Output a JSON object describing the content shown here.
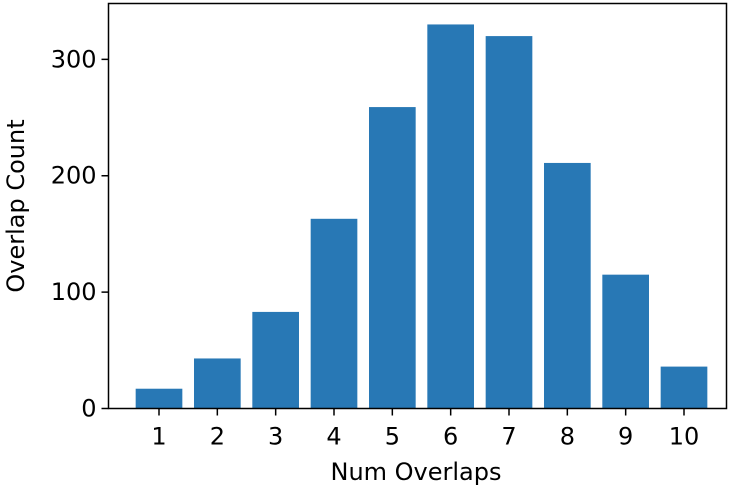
{
  "chart_data": {
    "type": "bar",
    "title": "",
    "xlabel": "Num Overlaps",
    "ylabel": "Overlap Count",
    "categories": [
      "1",
      "2",
      "3",
      "4",
      "5",
      "6",
      "7",
      "8",
      "9",
      "10"
    ],
    "values": [
      17,
      43,
      83,
      163,
      259,
      330,
      320,
      211,
      115,
      36
    ],
    "ylim": [
      0,
      348
    ],
    "yticks": [
      0,
      100,
      200,
      300
    ],
    "bar_color": "#2878b5",
    "grid": false,
    "legend": false
  }
}
